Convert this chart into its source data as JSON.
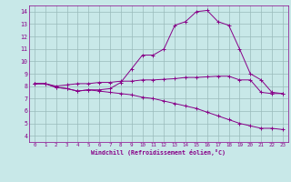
{
  "xlabel": "Windchill (Refroidissement éolien,°C)",
  "xlim": [
    -0.5,
    23.5
  ],
  "ylim": [
    3.5,
    14.5
  ],
  "xticks": [
    0,
    1,
    2,
    3,
    4,
    5,
    6,
    7,
    8,
    9,
    10,
    11,
    12,
    13,
    14,
    15,
    16,
    17,
    18,
    19,
    20,
    21,
    22,
    23
  ],
  "yticks": [
    4,
    5,
    6,
    7,
    8,
    9,
    10,
    11,
    12,
    13,
    14
  ],
  "bg_color": "#c8e8e8",
  "line_color": "#880088",
  "grid_color": "#99bbbb",
  "line1_x": [
    0,
    1,
    2,
    3,
    4,
    5,
    6,
    7,
    8,
    9,
    10,
    11,
    12,
    13,
    14,
    15,
    16,
    17,
    18,
    19,
    20,
    21,
    22,
    23
  ],
  "line1_y": [
    8.2,
    8.2,
    8.0,
    8.1,
    8.2,
    8.2,
    8.3,
    8.3,
    8.4,
    8.4,
    8.5,
    8.5,
    8.55,
    8.6,
    8.7,
    8.7,
    8.75,
    8.8,
    8.8,
    8.5,
    8.5,
    7.5,
    7.4,
    7.4
  ],
  "line2_x": [
    0,
    1,
    2,
    3,
    4,
    5,
    6,
    7,
    8,
    9,
    10,
    11,
    12,
    13,
    14,
    15,
    16,
    17,
    18,
    19,
    20,
    21,
    22,
    23
  ],
  "line2_y": [
    8.2,
    8.2,
    7.9,
    7.8,
    7.6,
    7.7,
    7.7,
    7.8,
    8.3,
    9.4,
    10.5,
    10.5,
    11.0,
    12.9,
    13.2,
    14.0,
    14.1,
    13.2,
    12.9,
    11.0,
    9.0,
    8.5,
    7.5,
    7.4
  ],
  "line3_x": [
    0,
    1,
    2,
    3,
    4,
    5,
    6,
    7,
    8,
    9,
    10,
    11,
    12,
    13,
    14,
    15,
    16,
    17,
    18,
    19,
    20,
    21,
    22,
    23
  ],
  "line3_y": [
    8.2,
    8.2,
    7.9,
    7.8,
    7.6,
    7.7,
    7.6,
    7.5,
    7.4,
    7.3,
    7.1,
    7.0,
    6.8,
    6.6,
    6.4,
    6.2,
    5.9,
    5.6,
    5.3,
    5.0,
    4.8,
    4.6,
    4.6,
    4.5
  ]
}
